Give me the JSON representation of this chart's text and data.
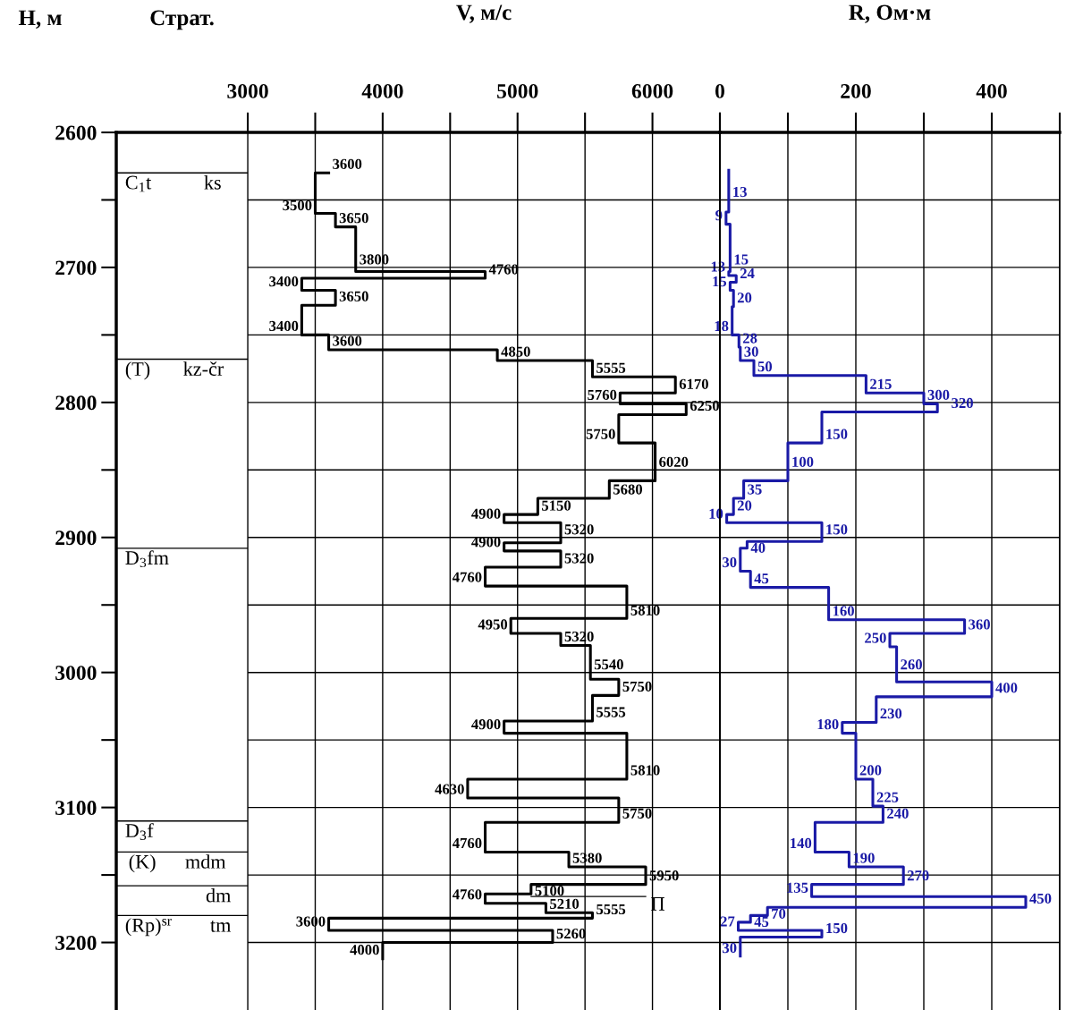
{
  "chart_data": [
    {
      "type": "line",
      "orientation": "horizontal",
      "xlabel": "V, м/с",
      "ylabel": "H, м",
      "xlim": [
        2025,
        6500
      ],
      "xticks": [
        3000,
        {
          "value": 3500,
          "label": null
        },
        4000,
        {
          "value": 4500,
          "label": null
        },
        5000,
        {
          "value": 5500,
          "label": null
        },
        6000,
        {
          "value": 6500,
          "label": null
        }
      ],
      "ylim": [
        3250,
        2600
      ],
      "yticks": [
        2600,
        {
          "value": 2650,
          "label": null
        },
        2700,
        {
          "value": 2750,
          "label": null
        },
        2800,
        {
          "value": 2850,
          "label": null
        },
        2900,
        {
          "value": 2950,
          "label": null
        },
        3000,
        {
          "value": 3050,
          "label": null
        },
        3100,
        {
          "value": 3150,
          "label": null
        },
        3200
      ],
      "grid": true,
      "series": [
        {
          "color": "#000000",
          "values": [
            3600,
            3500,
            3500,
            3650,
            3650,
            3800,
            3800,
            4760,
            4760,
            3400,
            3400,
            3650,
            3650,
            3400,
            3400,
            3600,
            3600,
            4850,
            4850,
            5555,
            5555,
            6170,
            6170,
            5760,
            5760,
            6250,
            6250,
            5750,
            5750,
            6020,
            6020,
            5680,
            5680,
            5150,
            5150,
            4900,
            4900,
            5320,
            5320,
            4900,
            4900,
            5320,
            5320,
            4760,
            4760,
            5810,
            5810,
            4950,
            4950,
            5320,
            5320,
            5540,
            5540,
            5750,
            5750,
            5555,
            5555,
            4900,
            4900,
            5810,
            5810,
            4630,
            4630,
            5750,
            5750,
            4760,
            4760,
            5380,
            5380,
            5950,
            5950,
            5100,
            5100,
            4760,
            4760,
            5210,
            5210,
            5555,
            5555,
            3600,
            3600,
            5260,
            5260,
            4000,
            4000
          ],
          "x": [
            2630,
            2630,
            2660,
            2660,
            2670,
            2670,
            2703,
            2703,
            2708,
            2708,
            2717,
            2717,
            2728,
            2728,
            2750,
            2750,
            2761,
            2761,
            2769,
            2769,
            2781,
            2781,
            2793,
            2793,
            2801,
            2801,
            2809,
            2809,
            2830,
            2830,
            2858,
            2858,
            2871,
            2871,
            2883,
            2883,
            2889,
            2889,
            2904,
            2904,
            2910,
            2910,
            2922,
            2922,
            2936,
            2936,
            2960,
            2960,
            2971,
            2971,
            2980,
            2980,
            3005,
            3005,
            3017,
            3017,
            3036,
            3036,
            3045,
            3045,
            3079,
            3079,
            3093,
            3093,
            3111,
            3111,
            3133,
            3133,
            3144,
            3144,
            3157,
            3157,
            3164,
            3164,
            3171,
            3171,
            3178,
            3178,
            3182,
            3182,
            3191,
            3191,
            3200,
            3200,
            3212
          ],
          "value_labels": [
            "3600",
            null,
            "3500",
            null,
            "3650",
            null,
            "3800",
            null,
            "4760",
            null,
            "3400",
            null,
            "3650",
            null,
            "3400",
            null,
            "3600",
            null,
            "4850",
            null,
            "5555",
            null,
            "6170",
            null,
            "5760",
            null,
            "6250",
            null,
            "5750",
            null,
            "6020",
            null,
            "5680",
            null,
            "5150",
            null,
            "4900",
            null,
            "5320",
            null,
            "4900",
            null,
            "5320",
            null,
            "4760",
            null,
            "5810",
            null,
            "4950",
            null,
            "5320",
            null,
            "5540",
            null,
            "5750",
            null,
            "5555",
            null,
            "4900",
            null,
            "5810",
            null,
            "4630",
            null,
            "5750",
            null,
            "4760",
            null,
            "5380",
            null,
            "5950",
            null,
            "5100",
            null,
            "4760",
            null,
            "5210",
            null,
            "5555",
            null,
            "3600",
            null,
            "5260",
            null,
            "4000"
          ]
        },
        {
          "name": "П",
          "color": "#000000",
          "x": [
            3166,
            3166
          ],
          "values": [
            5100,
            5950
          ]
        }
      ],
      "ref_lines": [
        {
          "axis": "y",
          "value": 2630
        },
        {
          "axis": "y",
          "value": 2768
        },
        {
          "axis": "y",
          "value": 2908
        },
        {
          "axis": "y",
          "value": 3110
        },
        {
          "axis": "y",
          "value": 3133
        },
        {
          "axis": "y",
          "value": 3158
        },
        {
          "axis": "y",
          "value": 3180
        }
      ],
      "annotations": [
        "Страт.",
        {
          "text": "C$_{1}$t",
          "x": 2090,
          "y": 2630
        },
        {
          "text": "ks",
          "x": 2674,
          "y": 2630
        },
        {
          "text": "(T)",
          "x": 2090,
          "y": 2768
        },
        {
          "text": "kz-čr",
          "x": 2520,
          "y": 2768
        },
        {
          "text": "D$_{3}$fm",
          "x": 2090,
          "y": 2908
        },
        {
          "text": "D$_{3}$f",
          "x": 2090,
          "y": 3110
        },
        {
          "text": "(K)",
          "x": 2116,
          "y": 3133
        },
        {
          "text": "mdm",
          "x": 2535,
          "y": 3133
        },
        {
          "text": "dm",
          "x": 2688,
          "y": 3158
        },
        {
          "text": "(Rp)$^{sr}$",
          "x": 2090,
          "y": 3180
        },
        {
          "text": "tm",
          "x": 2721,
          "y": 3180
        }
      ]
    },
    {
      "type": "line",
      "orientation": "horizontal",
      "xlabel": "R, Ом·м",
      "xlim": [
        0,
        500
      ],
      "xticks": [
        0,
        {
          "value": 100,
          "label": null
        },
        200,
        {
          "value": 300,
          "label": null
        },
        400,
        {
          "value": 500,
          "label": null
        }
      ],
      "ylim": [
        3250,
        2600
      ],
      "yticks": [
        2600,
        2650,
        2700,
        2750,
        2800,
        2850,
        2900,
        2950,
        3000,
        3050,
        3100,
        3150,
        3200
      ],
      "tick_labels": "x",
      "grid": true,
      "series": [
        {
          "color": "#1a1aa6",
          "values": [
            13,
            13,
            9,
            9,
            15,
            15,
            13,
            13,
            24,
            24,
            15,
            15,
            20,
            20,
            18,
            18,
            28,
            28,
            30,
            30,
            50,
            50,
            215,
            215,
            300,
            300,
            320,
            320,
            150,
            150,
            100,
            100,
            35,
            35,
            20,
            20,
            10,
            10,
            150,
            150,
            40,
            40,
            30,
            30,
            45,
            45,
            160,
            160,
            360,
            360,
            250,
            250,
            260,
            260,
            400,
            400,
            230,
            230,
            180,
            180,
            200,
            200,
            225,
            225,
            240,
            240,
            140,
            140,
            190,
            190,
            270,
            270,
            135,
            135,
            450,
            450,
            70,
            70,
            45,
            45,
            27,
            27,
            150,
            150,
            30,
            30
          ],
          "x": [
            2628,
            2659,
            2659,
            2668,
            2668,
            2703,
            2703,
            2706,
            2706,
            2711,
            2711,
            2717,
            2717,
            2729,
            2729,
            2750,
            2750,
            2759,
            2759,
            2769,
            2769,
            2780,
            2780,
            2793,
            2793,
            2801,
            2801,
            2807,
            2807,
            2830,
            2830,
            2858,
            2858,
            2871,
            2871,
            2883,
            2883,
            2889,
            2889,
            2903,
            2903,
            2908,
            2908,
            2925,
            2925,
            2937,
            2937,
            2961,
            2961,
            2971,
            2971,
            2981,
            2981,
            3007,
            3007,
            3018,
            3018,
            3037,
            3037,
            3045,
            3045,
            3079,
            3079,
            3099,
            3099,
            3111,
            3111,
            3133,
            3133,
            3144,
            3144,
            3157,
            3157,
            3166,
            3166,
            3174,
            3174,
            3180,
            3180,
            3185,
            3185,
            3191,
            3191,
            3196,
            3196,
            3210
          ],
          "value_labels": [
            null,
            "13",
            null,
            "9",
            null,
            "15",
            null,
            "13",
            null,
            "24",
            null,
            "15",
            null,
            "20",
            null,
            "18",
            null,
            "28",
            null,
            "30",
            null,
            "50",
            null,
            "215",
            null,
            "300",
            null,
            "320",
            null,
            "150",
            null,
            "100",
            null,
            "35",
            null,
            "20",
            null,
            "10",
            null,
            "150",
            null,
            "40",
            null,
            "30",
            null,
            "45",
            null,
            "160",
            null,
            "360",
            null,
            "250",
            null,
            "260",
            null,
            "400",
            null,
            "230",
            null,
            "180",
            null,
            "200",
            null,
            "225",
            null,
            "240",
            null,
            "140",
            null,
            "190",
            null,
            "270",
            null,
            "135",
            null,
            "450",
            null,
            "70",
            null,
            "45",
            null,
            "27",
            null,
            "150",
            null,
            "30"
          ]
        }
      ]
    }
  ]
}
